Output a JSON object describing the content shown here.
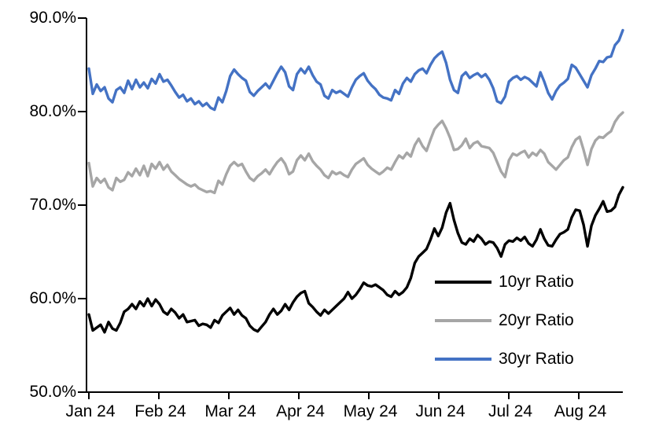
{
  "chart_data": {
    "type": "line",
    "grid": "off",
    "legend_position": "inside-bottom-right",
    "x_axis": {
      "tick_labels": [
        "Jan 24",
        "Feb 24",
        "Mar 24",
        "Apr 24",
        "May 24",
        "Jun 24",
        "Jul 24",
        "Aug 24"
      ],
      "sampling": "daily values, uniform across plot width"
    },
    "y_axis": {
      "tick_labels": [
        "90.0%",
        "80.0%",
        "70.0%",
        "60.0%",
        "50.0%"
      ],
      "range": [
        50,
        90
      ],
      "tick_step": 10,
      "unit": "%"
    },
    "series": [
      {
        "name": "10yr Ratio",
        "color": "#000000",
        "values": [
          58.3,
          56.6,
          56.9,
          57.2,
          56.4,
          57.5,
          56.8,
          56.6,
          57.4,
          58.6,
          58.9,
          59.4,
          58.9,
          59.7,
          59.2,
          60.0,
          59.2,
          59.9,
          59.4,
          58.6,
          58.3,
          58.9,
          58.5,
          57.9,
          58.3,
          57.5,
          57.6,
          57.7,
          57.1,
          57.3,
          57.2,
          56.9,
          57.7,
          57.4,
          58.2,
          58.6,
          59.0,
          58.3,
          58.8,
          58.2,
          57.9,
          57.1,
          56.7,
          56.5,
          57.0,
          57.5,
          58.3,
          58.9,
          58.3,
          58.7,
          59.4,
          58.8,
          59.6,
          60.2,
          60.6,
          60.8,
          59.5,
          59.1,
          58.6,
          58.2,
          58.8,
          58.4,
          58.8,
          59.2,
          59.6,
          60.0,
          60.7,
          60.0,
          60.4,
          61.0,
          61.7,
          61.4,
          61.3,
          61.5,
          61.2,
          60.9,
          60.4,
          60.2,
          60.8,
          60.4,
          60.7,
          61.2,
          62.2,
          63.8,
          64.5,
          64.9,
          65.3,
          66.3,
          67.5,
          66.7,
          67.6,
          69.2,
          70.2,
          68.4,
          67.0,
          66.0,
          65.8,
          66.4,
          66.1,
          66.8,
          66.4,
          65.8,
          66.1,
          66.0,
          65.4,
          64.5,
          65.8,
          66.2,
          66.1,
          66.5,
          66.2,
          66.6,
          65.9,
          65.6,
          66.3,
          67.4,
          66.4,
          65.7,
          65.6,
          66.3,
          66.9,
          67.1,
          67.4,
          68.7,
          69.5,
          69.4,
          67.9,
          65.6,
          67.8,
          68.9,
          69.6,
          70.4,
          69.3,
          69.4,
          69.8,
          71.1,
          71.9
        ]
      },
      {
        "name": "20yr Ratio",
        "color": "#a6a6a6",
        "values": [
          74.5,
          72.0,
          72.9,
          72.4,
          72.8,
          71.9,
          71.6,
          72.9,
          72.5,
          72.7,
          73.5,
          73.1,
          73.9,
          73.2,
          74.2,
          73.1,
          74.4,
          73.9,
          74.6,
          73.8,
          74.3,
          73.6,
          73.2,
          72.8,
          72.5,
          72.2,
          72.0,
          72.2,
          71.8,
          71.6,
          71.4,
          71.5,
          71.3,
          72.6,
          72.2,
          73.3,
          74.2,
          74.6,
          74.2,
          74.4,
          73.6,
          72.9,
          72.6,
          73.1,
          73.4,
          73.8,
          73.3,
          74.0,
          74.6,
          75.0,
          74.4,
          73.3,
          73.6,
          74.8,
          75.3,
          74.8,
          75.5,
          74.7,
          74.2,
          73.8,
          73.2,
          72.9,
          73.6,
          73.3,
          73.5,
          73.2,
          73.0,
          73.8,
          74.4,
          74.7,
          75.0,
          74.3,
          73.9,
          73.6,
          73.3,
          73.6,
          74.0,
          73.8,
          74.6,
          75.3,
          75.0,
          75.6,
          75.2,
          76.4,
          77.1,
          76.3,
          75.8,
          77.0,
          78.1,
          78.6,
          79.0,
          78.2,
          77.2,
          75.9,
          76.0,
          76.4,
          77.1,
          76.1,
          76.6,
          76.8,
          76.3,
          76.2,
          76.1,
          75.6,
          74.6,
          73.6,
          73.0,
          74.8,
          75.5,
          75.3,
          75.6,
          75.8,
          75.1,
          75.6,
          75.3,
          75.9,
          75.5,
          74.6,
          74.2,
          73.8,
          74.3,
          74.8,
          75.1,
          76.2,
          77.0,
          77.3,
          75.9,
          74.3,
          76.0,
          76.9,
          77.3,
          77.2,
          77.6,
          77.9,
          78.9,
          79.5,
          79.9
        ]
      },
      {
        "name": "30yr Ratio",
        "color": "#4472c4",
        "values": [
          84.6,
          81.9,
          82.9,
          82.2,
          82.6,
          81.4,
          81.0,
          82.3,
          82.6,
          82.0,
          83.3,
          82.4,
          83.4,
          82.6,
          83.1,
          82.5,
          83.5,
          83.0,
          84.0,
          83.2,
          83.4,
          82.8,
          82.1,
          81.5,
          81.8,
          81.1,
          81.4,
          80.8,
          81.1,
          80.6,
          80.9,
          80.4,
          80.2,
          81.5,
          81.0,
          82.2,
          83.8,
          84.5,
          84.0,
          83.6,
          83.3,
          82.1,
          81.7,
          82.2,
          82.6,
          83.0,
          82.5,
          83.3,
          84.1,
          84.8,
          84.2,
          82.7,
          82.3,
          84.0,
          84.6,
          84.1,
          84.8,
          83.9,
          83.2,
          82.9,
          81.7,
          81.4,
          82.3,
          82.0,
          82.2,
          81.9,
          81.6,
          82.6,
          83.4,
          83.8,
          84.1,
          83.3,
          82.8,
          82.4,
          81.8,
          81.5,
          81.4,
          81.2,
          82.3,
          81.9,
          83.0,
          83.6,
          83.2,
          84.0,
          84.4,
          84.6,
          84.1,
          85.0,
          85.7,
          86.1,
          86.4,
          85.2,
          83.4,
          82.3,
          82.0,
          83.8,
          84.2,
          83.6,
          83.9,
          84.1,
          83.7,
          84.0,
          83.4,
          82.5,
          81.1,
          80.9,
          81.6,
          83.2,
          83.6,
          83.8,
          83.4,
          83.7,
          83.5,
          83.1,
          82.7,
          84.2,
          83.2,
          82.0,
          81.3,
          82.2,
          82.8,
          83.1,
          83.5,
          85.0,
          84.7,
          84.0,
          83.3,
          82.6,
          83.9,
          84.6,
          85.4,
          85.3,
          85.8,
          85.9,
          87.1,
          87.6,
          88.7
        ]
      }
    ]
  },
  "legend": {
    "items": [
      {
        "label": "10yr Ratio"
      },
      {
        "label": "20yr Ratio"
      },
      {
        "label": "30yr Ratio"
      }
    ]
  }
}
